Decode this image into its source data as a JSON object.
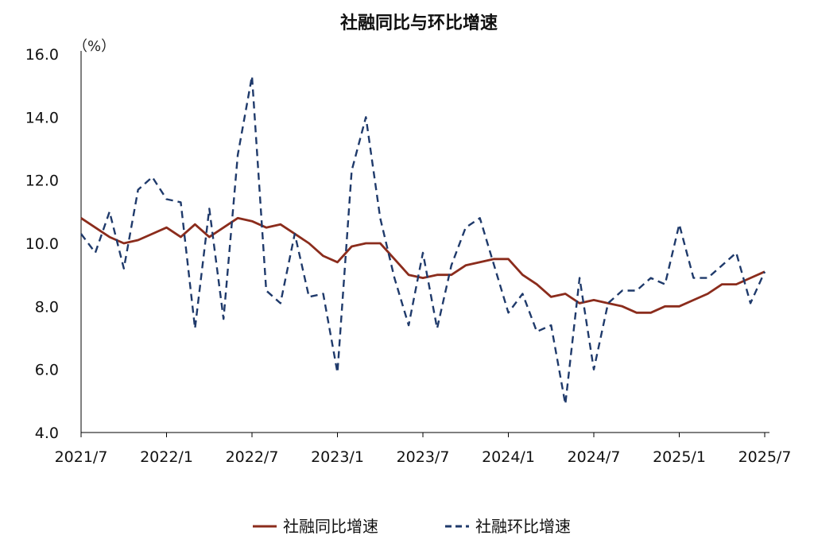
{
  "chart_data": {
    "type": "line",
    "title": "社融同比与环比增速",
    "unit_label": "（%）",
    "ylim": [
      4.0,
      16.0
    ],
    "y_ticks": [
      "4.0",
      "6.0",
      "8.0",
      "10.0",
      "12.0",
      "14.0",
      "16.0"
    ],
    "x_range": [
      "2021-07",
      "2025-07"
    ],
    "x_ticks": [
      "2021/7",
      "2022/1",
      "2022/7",
      "2023/1",
      "2023/7",
      "2024/1",
      "2024/7",
      "2025/1",
      "2025/7"
    ],
    "legend_position": "bottom-center",
    "grid": false,
    "series": [
      {
        "name": "社融同比增速",
        "style": "solid",
        "color": "#8B2C1C",
        "points": [
          [
            "2021-07",
            10.8
          ],
          [
            "2021-08",
            10.5
          ],
          [
            "2021-09",
            10.2
          ],
          [
            "2021-10",
            10.0
          ],
          [
            "2021-11",
            10.1
          ],
          [
            "2021-12",
            10.3
          ],
          [
            "2022-01",
            10.5
          ],
          [
            "2022-02",
            10.2
          ],
          [
            "2022-03",
            10.6
          ],
          [
            "2022-04",
            10.2
          ],
          [
            "2022-05",
            10.5
          ],
          [
            "2022-06",
            10.8
          ],
          [
            "2022-07",
            10.7
          ],
          [
            "2022-08",
            10.5
          ],
          [
            "2022-09",
            10.6
          ],
          [
            "2022-10",
            10.3
          ],
          [
            "2022-11",
            10.0
          ],
          [
            "2022-12",
            9.6
          ],
          [
            "2023-01",
            9.4
          ],
          [
            "2023-02",
            9.9
          ],
          [
            "2023-03",
            10.0
          ],
          [
            "2023-04",
            10.0
          ],
          [
            "2023-05",
            9.5
          ],
          [
            "2023-06",
            9.0
          ],
          [
            "2023-07",
            8.9
          ],
          [
            "2023-08",
            9.0
          ],
          [
            "2023-09",
            9.0
          ],
          [
            "2023-10",
            9.3
          ],
          [
            "2023-11",
            9.4
          ],
          [
            "2023-12",
            9.5
          ],
          [
            "2024-01",
            9.5
          ],
          [
            "2024-02",
            9.0
          ],
          [
            "2024-03",
            8.7
          ],
          [
            "2024-04",
            8.3
          ],
          [
            "2024-05",
            8.4
          ],
          [
            "2024-06",
            8.1
          ],
          [
            "2024-07",
            8.2
          ],
          [
            "2024-08",
            8.1
          ],
          [
            "2024-09",
            8.0
          ],
          [
            "2024-10",
            7.8
          ],
          [
            "2024-11",
            7.8
          ],
          [
            "2024-12",
            8.0
          ],
          [
            "2025-01",
            8.0
          ],
          [
            "2025-02",
            8.2
          ],
          [
            "2025-03",
            8.4
          ],
          [
            "2025-04",
            8.7
          ],
          [
            "2025-05",
            8.7
          ],
          [
            "2025-06",
            8.9
          ],
          [
            "2025-07",
            9.1
          ]
        ]
      },
      {
        "name": "社融环比增速",
        "style": "dashed",
        "color": "#1F3A6B",
        "points": [
          [
            "2021-07",
            10.3
          ],
          [
            "2021-08",
            9.7
          ],
          [
            "2021-09",
            11.0
          ],
          [
            "2021-10",
            9.2
          ],
          [
            "2021-11",
            11.7
          ],
          [
            "2021-12",
            12.1
          ],
          [
            "2022-01",
            11.4
          ],
          [
            "2022-02",
            11.3
          ],
          [
            "2022-03",
            7.3
          ],
          [
            "2022-04",
            11.1
          ],
          [
            "2022-05",
            7.6
          ],
          [
            "2022-06",
            12.8
          ],
          [
            "2022-07",
            15.3
          ],
          [
            "2022-08",
            8.5
          ],
          [
            "2022-09",
            8.1
          ],
          [
            "2022-10",
            10.3
          ],
          [
            "2022-11",
            8.3
          ],
          [
            "2022-12",
            8.4
          ],
          [
            "2023-01",
            5.9
          ],
          [
            "2023-02",
            12.3
          ],
          [
            "2023-03",
            14.0
          ],
          [
            "2023-04",
            10.8
          ],
          [
            "2023-05",
            8.9
          ],
          [
            "2023-06",
            7.4
          ],
          [
            "2023-07",
            9.7
          ],
          [
            "2023-08",
            7.3
          ],
          [
            "2023-09",
            9.3
          ],
          [
            "2023-10",
            10.5
          ],
          [
            "2023-11",
            10.8
          ],
          [
            "2023-12",
            9.3
          ],
          [
            "2024-01",
            7.8
          ],
          [
            "2024-02",
            8.4
          ],
          [
            "2024-03",
            7.2
          ],
          [
            "2024-04",
            7.4
          ],
          [
            "2024-05",
            4.9
          ],
          [
            "2024-06",
            8.9
          ],
          [
            "2024-07",
            6.0
          ],
          [
            "2024-08",
            8.1
          ],
          [
            "2024-09",
            8.5
          ],
          [
            "2024-10",
            8.5
          ],
          [
            "2024-11",
            8.9
          ],
          [
            "2024-12",
            8.7
          ],
          [
            "2025-01",
            10.6
          ],
          [
            "2025-02",
            8.9
          ],
          [
            "2025-03",
            8.9
          ],
          [
            "2025-04",
            9.3
          ],
          [
            "2025-05",
            9.7
          ],
          [
            "2025-06",
            8.1
          ],
          [
            "2025-07",
            9.1
          ]
        ]
      }
    ]
  }
}
